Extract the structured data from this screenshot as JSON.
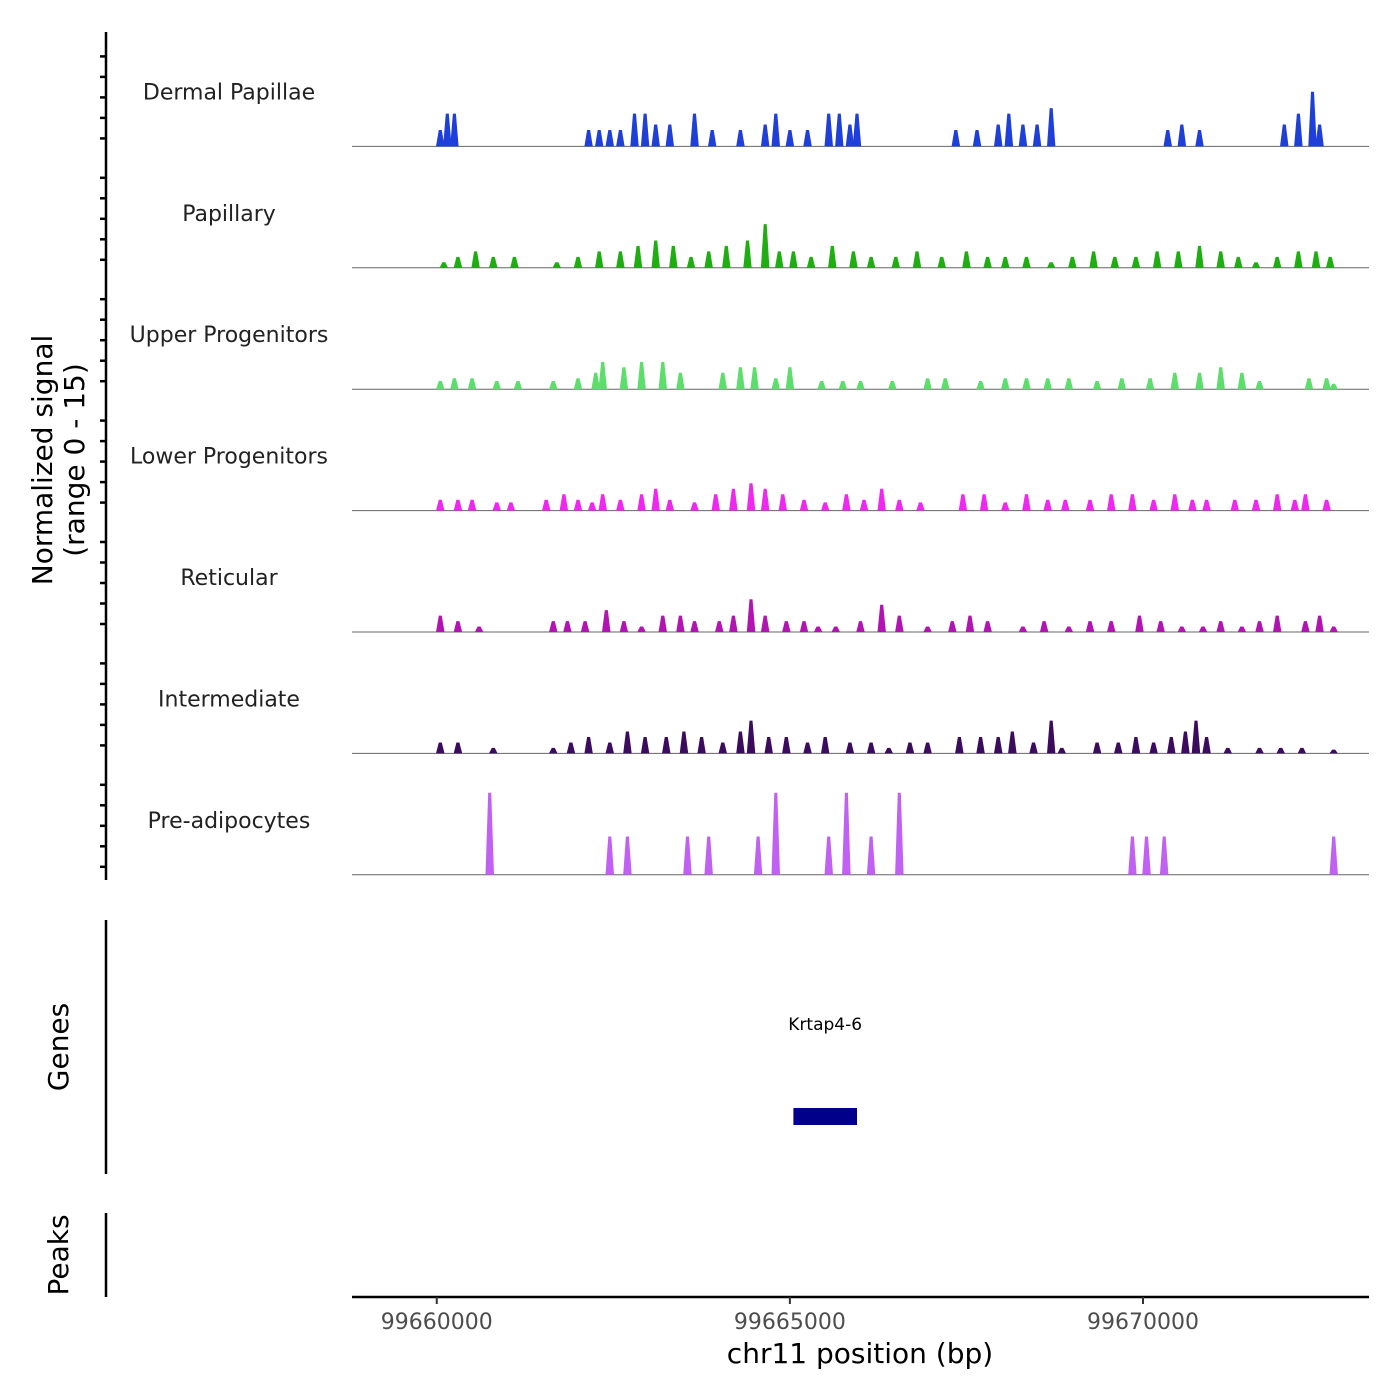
{
  "chart_data": {
    "type": "area",
    "title": "",
    "ylabel_line1": "Normalized signal",
    "ylabel_line2": "(range 0 - 15)",
    "xlabel": "chr11 position (bp)",
    "ylim": [
      0,
      15
    ],
    "xlim": [
      99658800,
      99673200
    ],
    "x_ticks": [
      99660000,
      99665000,
      99670000
    ],
    "x_tick_labels": [
      "99660000",
      "99665000",
      "99670000"
    ],
    "genes_label": "Genes",
    "peaks_label": "Peaks",
    "genes": [
      {
        "name": "Krtap4-6",
        "start": 99665050,
        "end": 99665950,
        "color": "#00008b"
      }
    ],
    "series": [
      {
        "name": "Dermal Papillae",
        "color": "#1f3fd9",
        "signal": [
          [
            99660050,
            3
          ],
          [
            99660150,
            6
          ],
          [
            99660250,
            6
          ],
          [
            99662150,
            3
          ],
          [
            99662300,
            3
          ],
          [
            99662450,
            3
          ],
          [
            99662600,
            3
          ],
          [
            99662800,
            6
          ],
          [
            99662950,
            6
          ],
          [
            99663100,
            4
          ],
          [
            99663300,
            4
          ],
          [
            99663650,
            6
          ],
          [
            99663900,
            3
          ],
          [
            99664300,
            3
          ],
          [
            99664650,
            4
          ],
          [
            99664800,
            6
          ],
          [
            99665000,
            3
          ],
          [
            99665250,
            3
          ],
          [
            99665550,
            6
          ],
          [
            99665700,
            6
          ],
          [
            99665850,
            4
          ],
          [
            99665950,
            6
          ],
          [
            99667350,
            3
          ],
          [
            99667650,
            3
          ],
          [
            99667950,
            4
          ],
          [
            99668100,
            6
          ],
          [
            99668300,
            4
          ],
          [
            99668500,
            4
          ],
          [
            99668700,
            7
          ],
          [
            99670350,
            3
          ],
          [
            99670550,
            4
          ],
          [
            99670800,
            3
          ],
          [
            99672000,
            4
          ],
          [
            99672200,
            6
          ],
          [
            99672400,
            10
          ],
          [
            99672500,
            4
          ]
        ]
      },
      {
        "name": "Papillary",
        "color": "#1fae12",
        "signal": [
          [
            99660100,
            1
          ],
          [
            99660300,
            2
          ],
          [
            99660550,
            3
          ],
          [
            99660800,
            2
          ],
          [
            99661100,
            2
          ],
          [
            99661700,
            1
          ],
          [
            99662000,
            2
          ],
          [
            99662300,
            3
          ],
          [
            99662600,
            3
          ],
          [
            99662850,
            4
          ],
          [
            99663100,
            5
          ],
          [
            99663350,
            4
          ],
          [
            99663600,
            2
          ],
          [
            99663850,
            3
          ],
          [
            99664100,
            4
          ],
          [
            99664400,
            5
          ],
          [
            99664650,
            8
          ],
          [
            99664850,
            3
          ],
          [
            99665050,
            3
          ],
          [
            99665300,
            2
          ],
          [
            99665600,
            4
          ],
          [
            99665900,
            3
          ],
          [
            99666150,
            2
          ],
          [
            99666500,
            2
          ],
          [
            99666800,
            3
          ],
          [
            99667150,
            2
          ],
          [
            99667500,
            3
          ],
          [
            99667800,
            2
          ],
          [
            99668050,
            2
          ],
          [
            99668350,
            2
          ],
          [
            99668700,
            1
          ],
          [
            99669000,
            2
          ],
          [
            99669300,
            3
          ],
          [
            99669600,
            2
          ],
          [
            99669900,
            2
          ],
          [
            99670200,
            3
          ],
          [
            99670500,
            3
          ],
          [
            99670800,
            4
          ],
          [
            99671100,
            3
          ],
          [
            99671350,
            2
          ],
          [
            99671600,
            1
          ],
          [
            99671900,
            2
          ],
          [
            99672200,
            3
          ],
          [
            99672450,
            3
          ],
          [
            99672650,
            2
          ]
        ]
      },
      {
        "name": "Upper Progenitors",
        "color": "#5ddd6c",
        "signal": [
          [
            99660050,
            1.5
          ],
          [
            99660250,
            2
          ],
          [
            99660500,
            2
          ],
          [
            99660850,
            1.5
          ],
          [
            99661150,
            1.5
          ],
          [
            99661650,
            1.5
          ],
          [
            99662000,
            2
          ],
          [
            99662250,
            3
          ],
          [
            99662350,
            5
          ],
          [
            99662650,
            4
          ],
          [
            99662900,
            5
          ],
          [
            99663200,
            5
          ],
          [
            99663450,
            3
          ],
          [
            99664050,
            3
          ],
          [
            99664300,
            4
          ],
          [
            99664500,
            4
          ],
          [
            99664800,
            2
          ],
          [
            99665000,
            4
          ],
          [
            99665450,
            1.5
          ],
          [
            99665750,
            1.5
          ],
          [
            99666000,
            1.5
          ],
          [
            99666450,
            1.5
          ],
          [
            99666950,
            2
          ],
          [
            99667200,
            2
          ],
          [
            99667700,
            1.5
          ],
          [
            99668050,
            2
          ],
          [
            99668350,
            2
          ],
          [
            99668650,
            2
          ],
          [
            99668950,
            2
          ],
          [
            99669350,
            1.5
          ],
          [
            99669700,
            2
          ],
          [
            99670100,
            2
          ],
          [
            99670450,
            3
          ],
          [
            99670800,
            3
          ],
          [
            99671100,
            4
          ],
          [
            99671400,
            3
          ],
          [
            99671650,
            1.5
          ],
          [
            99672350,
            2
          ],
          [
            99672600,
            2
          ],
          [
            99672700,
            1
          ]
        ]
      },
      {
        "name": "Lower Progenitors",
        "color": "#ee28ee",
        "signal": [
          [
            99660050,
            2
          ],
          [
            99660300,
            2
          ],
          [
            99660500,
            2
          ],
          [
            99660850,
            1.5
          ],
          [
            99661050,
            1.5
          ],
          [
            99661550,
            2
          ],
          [
            99661800,
            3
          ],
          [
            99662000,
            2
          ],
          [
            99662200,
            1.5
          ],
          [
            99662350,
            3
          ],
          [
            99662600,
            2
          ],
          [
            99662900,
            3
          ],
          [
            99663100,
            4
          ],
          [
            99663300,
            2
          ],
          [
            99663650,
            1.5
          ],
          [
            99663950,
            3
          ],
          [
            99664200,
            4
          ],
          [
            99664450,
            5
          ],
          [
            99664650,
            4
          ],
          [
            99664900,
            3
          ],
          [
            99665200,
            2
          ],
          [
            99665500,
            1.5
          ],
          [
            99665800,
            3
          ],
          [
            99666050,
            2
          ],
          [
            99666300,
            4
          ],
          [
            99666550,
            2
          ],
          [
            99666850,
            1.5
          ],
          [
            99667450,
            3
          ],
          [
            99667750,
            3
          ],
          [
            99668050,
            1.5
          ],
          [
            99668350,
            3
          ],
          [
            99668650,
            2
          ],
          [
            99668900,
            2
          ],
          [
            99669250,
            2
          ],
          [
            99669550,
            3
          ],
          [
            99669850,
            3
          ],
          [
            99670150,
            2
          ],
          [
            99670450,
            3
          ],
          [
            99670700,
            2
          ],
          [
            99670900,
            2
          ],
          [
            99671300,
            2
          ],
          [
            99671600,
            2
          ],
          [
            99671900,
            3
          ],
          [
            99672150,
            2
          ],
          [
            99672300,
            3
          ],
          [
            99672600,
            2
          ]
        ]
      },
      {
        "name": "Reticular",
        "color": "#b114b1",
        "signal": [
          [
            99660050,
            3
          ],
          [
            99660300,
            2
          ],
          [
            99660600,
            1
          ],
          [
            99661650,
            2
          ],
          [
            99661850,
            2
          ],
          [
            99662100,
            2
          ],
          [
            99662400,
            4
          ],
          [
            99662650,
            2
          ],
          [
            99662900,
            1
          ],
          [
            99663200,
            3
          ],
          [
            99663450,
            3
          ],
          [
            99663650,
            2
          ],
          [
            99664000,
            2
          ],
          [
            99664200,
            3
          ],
          [
            99664450,
            6
          ],
          [
            99664650,
            3
          ],
          [
            99664950,
            2
          ],
          [
            99665200,
            2
          ],
          [
            99665400,
            1
          ],
          [
            99665650,
            1
          ],
          [
            99666000,
            2
          ],
          [
            99666300,
            5
          ],
          [
            99666550,
            3
          ],
          [
            99666950,
            1
          ],
          [
            99667300,
            2
          ],
          [
            99667550,
            3
          ],
          [
            99667800,
            2
          ],
          [
            99668300,
            1
          ],
          [
            99668600,
            2
          ],
          [
            99668950,
            1
          ],
          [
            99669250,
            2
          ],
          [
            99669550,
            2
          ],
          [
            99669950,
            3
          ],
          [
            99670250,
            2
          ],
          [
            99670550,
            1
          ],
          [
            99670850,
            1
          ],
          [
            99671100,
            2
          ],
          [
            99671400,
            1
          ],
          [
            99671650,
            2
          ],
          [
            99671900,
            3
          ],
          [
            99672300,
            2
          ],
          [
            99672500,
            3
          ],
          [
            99672700,
            1
          ]
        ]
      },
      {
        "name": "Intermediate",
        "color": "#3b0c5e",
        "signal": [
          [
            99660050,
            2
          ],
          [
            99660300,
            2
          ],
          [
            99660800,
            1
          ],
          [
            99661650,
            1
          ],
          [
            99661900,
            2
          ],
          [
            99662150,
            3
          ],
          [
            99662450,
            2
          ],
          [
            99662700,
            4
          ],
          [
            99662950,
            3
          ],
          [
            99663250,
            3
          ],
          [
            99663500,
            4
          ],
          [
            99663750,
            3
          ],
          [
            99664050,
            2
          ],
          [
            99664300,
            4
          ],
          [
            99664450,
            6
          ],
          [
            99664700,
            3
          ],
          [
            99664950,
            3
          ],
          [
            99665250,
            2
          ],
          [
            99665500,
            3
          ],
          [
            99665850,
            2
          ],
          [
            99666150,
            2
          ],
          [
            99666400,
            1
          ],
          [
            99666700,
            2
          ],
          [
            99666950,
            2
          ],
          [
            99667400,
            3
          ],
          [
            99667700,
            3
          ],
          [
            99667950,
            3
          ],
          [
            99668150,
            4
          ],
          [
            99668450,
            2
          ],
          [
            99668700,
            6
          ],
          [
            99668850,
            1
          ],
          [
            99669350,
            2
          ],
          [
            99669650,
            2
          ],
          [
            99669900,
            3
          ],
          [
            99670150,
            2
          ],
          [
            99670400,
            3
          ],
          [
            99670600,
            4
          ],
          [
            99670750,
            6
          ],
          [
            99670900,
            3
          ],
          [
            99671200,
            1
          ],
          [
            99671650,
            1
          ],
          [
            99671950,
            1
          ],
          [
            99672250,
            1
          ],
          [
            99672700,
            0.7
          ]
        ]
      },
      {
        "name": "Pre-adipocytes",
        "color": "#c061f4",
        "signal": [
          [
            99660750,
            15
          ],
          [
            99662450,
            7
          ],
          [
            99662700,
            7
          ],
          [
            99663550,
            7
          ],
          [
            99663850,
            7
          ],
          [
            99664550,
            7
          ],
          [
            99664800,
            15
          ],
          [
            99665550,
            7
          ],
          [
            99665800,
            15
          ],
          [
            99666150,
            7
          ],
          [
            99666550,
            15
          ],
          [
            99669850,
            7
          ],
          [
            99670050,
            7
          ],
          [
            99670300,
            7
          ],
          [
            99672700,
            7
          ]
        ]
      }
    ]
  }
}
